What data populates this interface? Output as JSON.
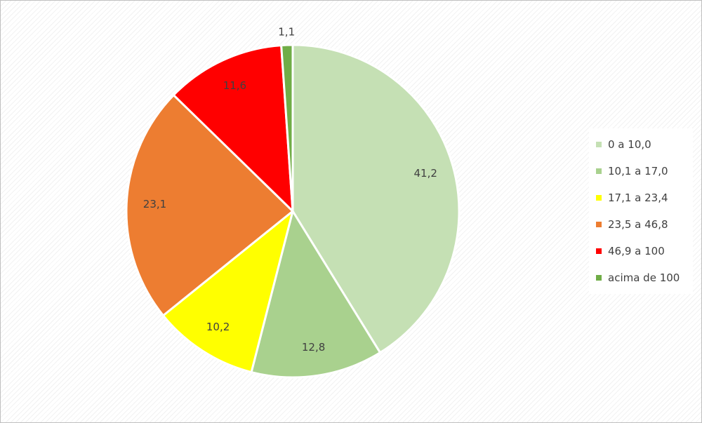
{
  "chart_data": {
    "type": "pie",
    "categories": [
      "0 a 10,0",
      "10,1 a 17,0",
      "17,1 a 23,4",
      "23,5 a 46,8",
      "46,9 a 100",
      "acima de 100"
    ],
    "values": [
      41.2,
      12.8,
      10.2,
      23.1,
      11.6,
      1.1
    ],
    "data_labels": [
      "41,2",
      "12,8",
      "10,2",
      "23,1",
      "11,6",
      "1,1"
    ],
    "colors": [
      "#c5e0b4",
      "#a9d18e",
      "#ffff00",
      "#ed7d31",
      "#ff0000",
      "#70ad47"
    ],
    "start_angle_deg": 0,
    "direction": "clockwise",
    "legend_placement": "right"
  }
}
